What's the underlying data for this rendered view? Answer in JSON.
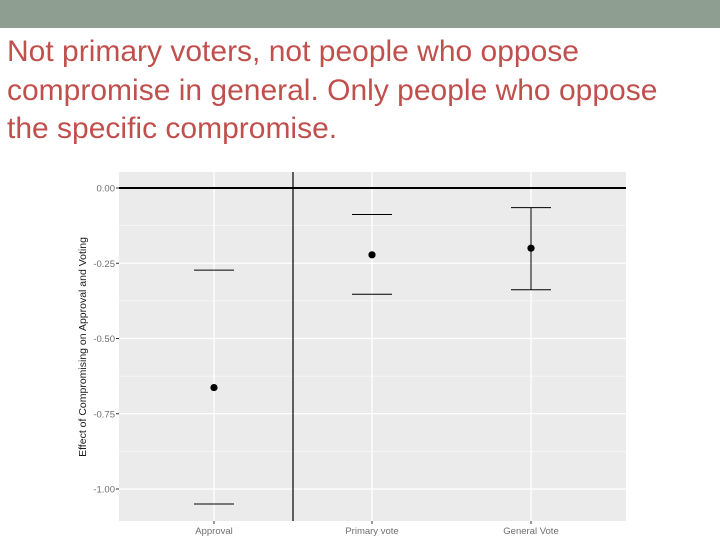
{
  "slide": {
    "title": "Not primary voters, not people who oppose compromise in general. Only people who oppose the specific compromise.",
    "title_color": "#c0504d",
    "accent_bar_color": "#8e9e90"
  },
  "chart_data": {
    "type": "scatter",
    "subtype": "point-with-errorbars",
    "categories": [
      "Approval",
      "Primary vote",
      "General Vote"
    ],
    "series": [
      {
        "estimate": [
          -0.663,
          -0.222,
          -0.2
        ],
        "ci_low": [
          -1.05,
          -0.353,
          -0.338
        ],
        "ci_high": [
          -0.273,
          -0.088,
          -0.065
        ]
      }
    ],
    "yticks": [
      0,
      -0.25,
      -0.5,
      -0.75,
      -1
    ],
    "ytick_labels": [
      "0.00",
      "-0.25",
      "-0.50",
      "-0.75",
      "-1.00"
    ],
    "xlabel": "",
    "ylabel": "Effect of Compromising on Approval and Voting",
    "ylim": [
      -1.105,
      0.05
    ],
    "reference_line_y": 0,
    "grid": true,
    "legend": "none",
    "panel_color": "#ebebeb",
    "grid_color": "#ffffff",
    "mark_color": "#000000"
  }
}
